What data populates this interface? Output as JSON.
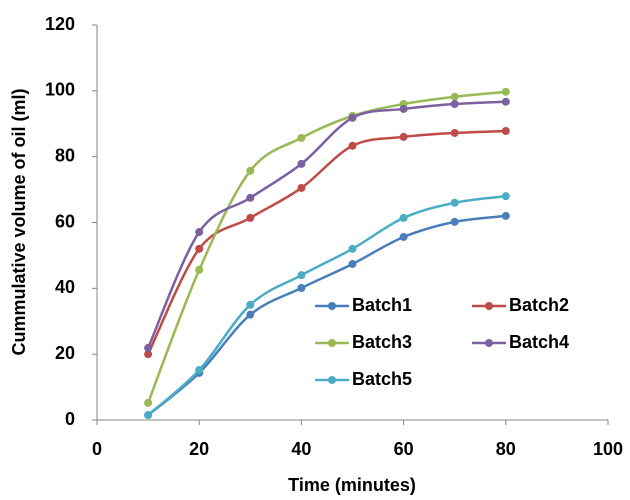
{
  "chart_data": {
    "type": "line",
    "smooth": true,
    "markers": true,
    "x_label": "Time (minutes)",
    "y_label": "Cummulative volume of oil (ml)",
    "xlim": [
      0,
      100
    ],
    "xticks": [
      0,
      20,
      40,
      60,
      80,
      100
    ],
    "ylim": [
      0,
      120
    ],
    "yticks": [
      0,
      20,
      40,
      60,
      80,
      100,
      120
    ],
    "grid": false,
    "legend": "lower right",
    "x": [
      10,
      20,
      30,
      40,
      50,
      60,
      70,
      80
    ],
    "series": [
      {
        "name": "Batch1",
        "color": "#4a7ebb",
        "values": [
          1.5,
          14.3,
          32,
          40.1,
          47.4,
          55.6,
          60.2,
          62
        ]
      },
      {
        "name": "Batch2",
        "color": "#be4b48",
        "values": [
          20,
          52,
          61.4,
          70.5,
          83.3,
          86,
          87.2,
          87.8
        ]
      },
      {
        "name": "Batch3",
        "color": "#98b954",
        "values": [
          5.2,
          45.6,
          75.7,
          85.7,
          92.4,
          96,
          98.2,
          99.7
        ]
      },
      {
        "name": "Batch4",
        "color": "#7d60a0",
        "values": [
          21.9,
          57.1,
          67.5,
          77.8,
          91.8,
          94.5,
          96,
          96.7
        ]
      },
      {
        "name": "Batch5",
        "color": "#4bacc6",
        "values": [
          1.5,
          15.2,
          35,
          44,
          52,
          61.4,
          66,
          68
        ]
      }
    ]
  }
}
